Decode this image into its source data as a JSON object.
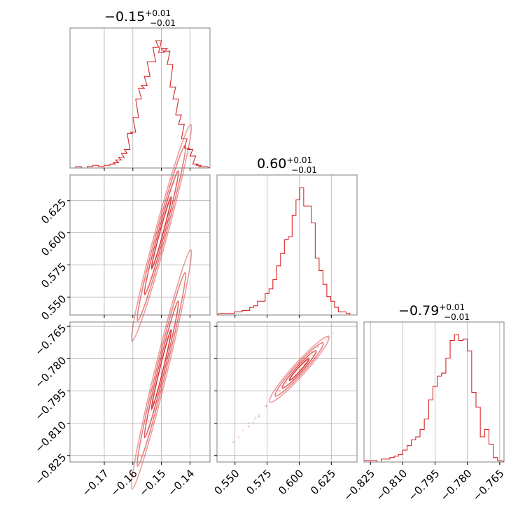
{
  "chart_data": {
    "type": "corner",
    "color": "#d62728",
    "parameters": [
      {
        "title": "−0.15",
        "title_plus": "+0.01",
        "title_minus": "−0.01",
        "median": -0.15,
        "range": [
          -0.182,
          -0.133
        ],
        "ticks": [
          -0.17,
          -0.16,
          -0.15,
          -0.14
        ],
        "tick_labels": [
          "−0.17",
          "−0.16",
          "−0.15",
          "−0.14"
        ]
      },
      {
        "title": "0.60",
        "title_plus": "+0.01",
        "title_minus": "−0.01",
        "median": 0.6,
        "range": [
          0.536,
          0.645
        ],
        "ticks": [
          0.55,
          0.575,
          0.6,
          0.625
        ],
        "tick_labels": [
          "0.550",
          "0.575",
          "0.600",
          "0.625"
        ]
      },
      {
        "title": "−0.79",
        "title_plus": "+0.01",
        "title_minus": "−0.01",
        "median": -0.785,
        "range": [
          -0.828,
          -0.763
        ],
        "ticks": [
          -0.825,
          -0.81,
          -0.795,
          -0.78,
          -0.765
        ],
        "tick_labels": [
          "−0.825",
          "−0.810",
          "−0.795",
          "−0.780",
          "−0.765"
        ]
      }
    ],
    "histograms": [
      {
        "x": [
          -0.181,
          -0.179,
          -0.177,
          -0.175,
          -0.173,
          -0.171,
          -0.169,
          -0.167,
          -0.166,
          -0.165,
          -0.164,
          -0.163,
          -0.162,
          -0.161,
          -0.16,
          -0.159,
          -0.158,
          -0.157,
          -0.156,
          -0.155,
          -0.154,
          -0.153,
          -0.152,
          -0.151,
          -0.15,
          -0.149,
          -0.148,
          -0.147,
          -0.146,
          -0.145,
          -0.144,
          -0.143,
          -0.142,
          -0.141,
          -0.14,
          -0.139,
          -0.138,
          -0.137,
          -0.136,
          -0.135
        ],
        "counts": [
          0,
          1,
          0,
          1,
          2,
          1,
          2,
          3,
          4,
          6,
          8,
          11,
          14,
          26,
          27,
          38,
          52,
          60,
          62,
          69,
          80,
          80,
          91,
          96,
          87,
          90,
          88,
          78,
          61,
          52,
          40,
          33,
          22,
          15,
          14,
          9,
          3,
          2,
          1,
          1
        ]
      },
      {
        "x": [
          0.539,
          0.542,
          0.545,
          0.548,
          0.551,
          0.554,
          0.557,
          0.56,
          0.563,
          0.566,
          0.569,
          0.572,
          0.575,
          0.578,
          0.581,
          0.584,
          0.587,
          0.59,
          0.593,
          0.596,
          0.599,
          0.602,
          0.605,
          0.608,
          0.611,
          0.614,
          0.617,
          0.62,
          0.623,
          0.626,
          0.629,
          0.632,
          0.635,
          0.638,
          0.641
        ],
        "counts": [
          1,
          1,
          1,
          1,
          2,
          2,
          3,
          3,
          5,
          6,
          9,
          9,
          14,
          17,
          23,
          32,
          40,
          49,
          51,
          65,
          75,
          83,
          71,
          71,
          60,
          37,
          29,
          20,
          12,
          9,
          5,
          2,
          2,
          1,
          0
        ]
      },
      {
        "x": [
          -0.827,
          -0.825,
          -0.823,
          -0.821,
          -0.819,
          -0.817,
          -0.815,
          -0.813,
          -0.811,
          -0.809,
          -0.807,
          -0.805,
          -0.803,
          -0.801,
          -0.799,
          -0.797,
          -0.795,
          -0.793,
          -0.791,
          -0.789,
          -0.787,
          -0.785,
          -0.783,
          -0.781,
          -0.779,
          -0.777,
          -0.775,
          -0.773,
          -0.771,
          -0.769,
          -0.767,
          -0.765
        ],
        "counts": [
          1,
          1,
          1,
          0,
          2,
          2,
          3,
          4,
          5,
          8,
          11,
          15,
          17,
          22,
          29,
          42,
          51,
          58,
          60,
          70,
          82,
          86,
          82,
          83,
          75,
          47,
          37,
          17,
          22,
          12,
          3,
          1
        ]
      }
    ],
    "pairs": [
      {
        "x_param": 0,
        "y_param": 1,
        "slope": 8.2
      },
      {
        "x_param": 0,
        "y_param": 2,
        "slope": 5.4
      },
      {
        "x_param": 1,
        "y_param": 2,
        "slope": 0.66
      }
    ],
    "grid": true
  }
}
